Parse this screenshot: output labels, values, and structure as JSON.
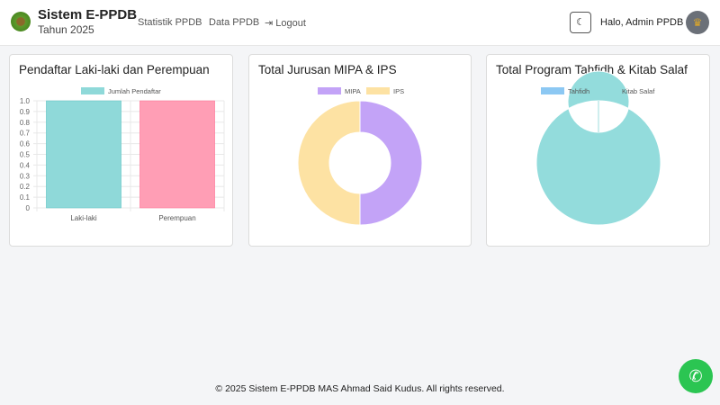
{
  "header": {
    "brand": "Sistem E-PPDB",
    "year": "Tahun 2025",
    "nav": [
      "Statistik PPDB",
      "Data PPDB",
      "Logout"
    ],
    "logout_icon": "sign-out-icon",
    "theme_icon": "moon-icon",
    "greeting": "Halo, Admin PPDB"
  },
  "cards": [
    {
      "title": "Pendaftar Laki-laki dan Perempuan"
    },
    {
      "title": "Total Jurusan MIPA & IPS"
    },
    {
      "title": "Total Program Tahfidh & Kitab Salaf"
    }
  ],
  "chart_data": [
    {
      "type": "bar",
      "categories": [
        "Laki-laki",
        "Perempuan"
      ],
      "series": [
        {
          "name": "Jumlah Pendaftar",
          "values": [
            1,
            1
          ]
        }
      ],
      "colors": [
        "#8fd9d9",
        "#ff9eb5"
      ],
      "ylim": [
        0,
        1
      ],
      "yticks": [
        "0",
        "0.1",
        "0.2",
        "0.3",
        "0.4",
        "0.5",
        "0.6",
        "0.7",
        "0.8",
        "0.9",
        "1.0"
      ],
      "legend": "top",
      "grid": true
    },
    {
      "type": "pie",
      "donut": true,
      "labels": [
        "MIPA",
        "IPS"
      ],
      "values": [
        1,
        1
      ],
      "colors": [
        "#c3a3f7",
        "#fde2a3"
      ],
      "legend": "top"
    },
    {
      "type": "pie",
      "donut": true,
      "labels": [
        "Tahfidh",
        "Kitab Salaf"
      ],
      "values": [
        0,
        1
      ],
      "colors": [
        "#8cc8f3",
        "#93dcdc"
      ],
      "legend": "top"
    }
  ],
  "footer": "© 2025 Sistem E-PPDB MAS Ahmad Said Kudus. All rights reserved."
}
